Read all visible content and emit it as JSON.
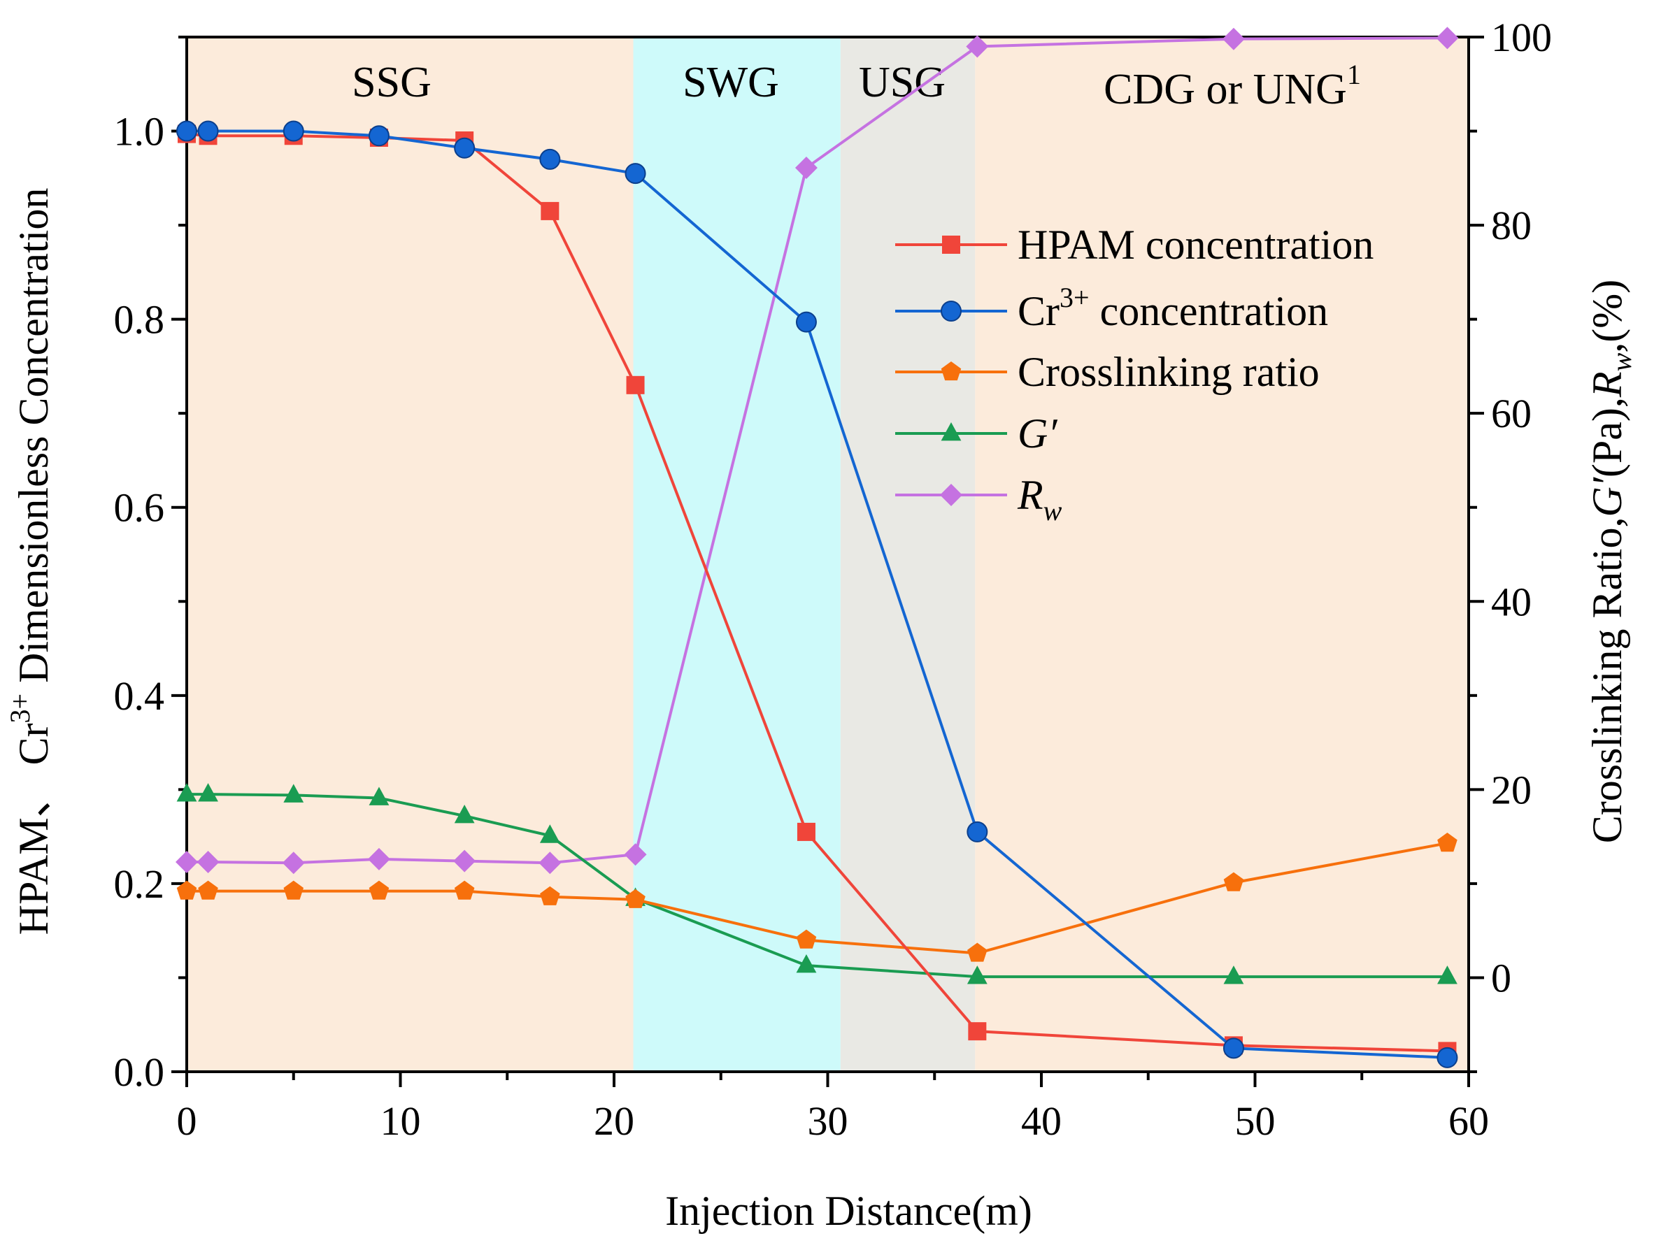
{
  "chart_data": {
    "type": "line",
    "title": "",
    "xlabel": "Injection Distance(m)",
    "ylabel_left": {
      "prefix": "HPAM、 Cr",
      "sup": "3+",
      "suffix": " Dimensionless Concentration"
    },
    "ylabel_right": {
      "p1": "Crosslinking Ratio,",
      "p2": "G′",
      "p3": "(Pa),",
      "p4": "R",
      "p5": "w",
      "p6": ",(%)"
    },
    "xlim": [
      0,
      60
    ],
    "ylim_left": [
      0,
      1.1
    ],
    "ylim_right": [
      -10,
      100
    ],
    "x_ticks": [
      0,
      10,
      20,
      30,
      40,
      50,
      60
    ],
    "x_tick_labels": [
      "0",
      "10",
      "20",
      "30",
      "40",
      "50",
      "60"
    ],
    "y_left_ticks": [
      0,
      0.2,
      0.4,
      0.6,
      0.8,
      1.0
    ],
    "y_left_tick_labels": [
      "0.0",
      "0.2",
      "0.4",
      "0.6",
      "0.8",
      "1.0"
    ],
    "y_right_ticks": [
      0,
      20,
      40,
      60,
      80,
      100
    ],
    "y_right_tick_labels": [
      "0",
      "20",
      "40",
      "60",
      "80",
      "100"
    ],
    "regions": [
      {
        "label": "SSG",
        "x0": 0,
        "x1": 20.9,
        "color": "#fcebdb"
      },
      {
        "label": "SWG",
        "x0": 20.9,
        "x1": 30.6,
        "color": "#cefafa"
      },
      {
        "label": "USG",
        "x0": 30.6,
        "x1": 36.9,
        "color": "#e9e9e4"
      },
      {
        "label": "CDG or UNG",
        "label_sup": "1",
        "x0": 36.9,
        "x1": 60,
        "color": "#fcebdb"
      }
    ],
    "series": [
      {
        "name": "HPAM concentration",
        "axis": "left",
        "color": "#f0453a",
        "marker": "square",
        "x": [
          0,
          1,
          5,
          9,
          13,
          17,
          21,
          29,
          37,
          49,
          59
        ],
        "y": [
          0.997,
          0.995,
          0.995,
          0.993,
          0.99,
          0.915,
          0.73,
          0.255,
          0.043,
          0.028,
          0.022
        ]
      },
      {
        "name": "Cr3+ concentration",
        "name_base": "Cr",
        "name_sup": "3+",
        "name_rest": " concentration",
        "axis": "left",
        "color": "#1466d2",
        "marker": "circle",
        "x": [
          0,
          1,
          5,
          9,
          13,
          17,
          21,
          29,
          37,
          49,
          59
        ],
        "y": [
          1.0,
          1.0,
          1.0,
          0.995,
          0.982,
          0.97,
          0.955,
          0.797,
          0.255,
          0.025,
          0.015
        ]
      },
      {
        "name": "Crosslinking ratio",
        "axis": "right",
        "color": "#f7700c",
        "marker": "pentagon",
        "x": [
          0,
          1,
          5,
          9,
          13,
          17,
          21,
          29,
          37,
          49,
          59
        ],
        "y": [
          9.2,
          9.2,
          9.2,
          9.2,
          9.2,
          8.6,
          8.3,
          4.0,
          2.6,
          10.1,
          14.3
        ]
      },
      {
        "name": "G′",
        "axis": "right",
        "color": "#1a9c52",
        "marker": "triangle",
        "x": [
          0,
          1,
          5,
          9,
          13,
          17,
          21,
          29,
          37,
          49,
          59
        ],
        "y": [
          19.5,
          19.5,
          19.4,
          19.1,
          17.2,
          15.1,
          8.4,
          1.3,
          0.1,
          0.1,
          0.1
        ]
      },
      {
        "name": "Rw",
        "name_base": "R",
        "name_sub": "w",
        "axis": "right",
        "color": "#c572e1",
        "marker": "diamond",
        "x": [
          0,
          1,
          5,
          9,
          13,
          17,
          21,
          29,
          37,
          49,
          59
        ],
        "y": [
          12.3,
          12.3,
          12.2,
          12.6,
          12.4,
          12.2,
          13.1,
          86.1,
          99.0,
          99.8,
          99.9
        ]
      }
    ],
    "legend": {
      "position": "top-right"
    }
  }
}
